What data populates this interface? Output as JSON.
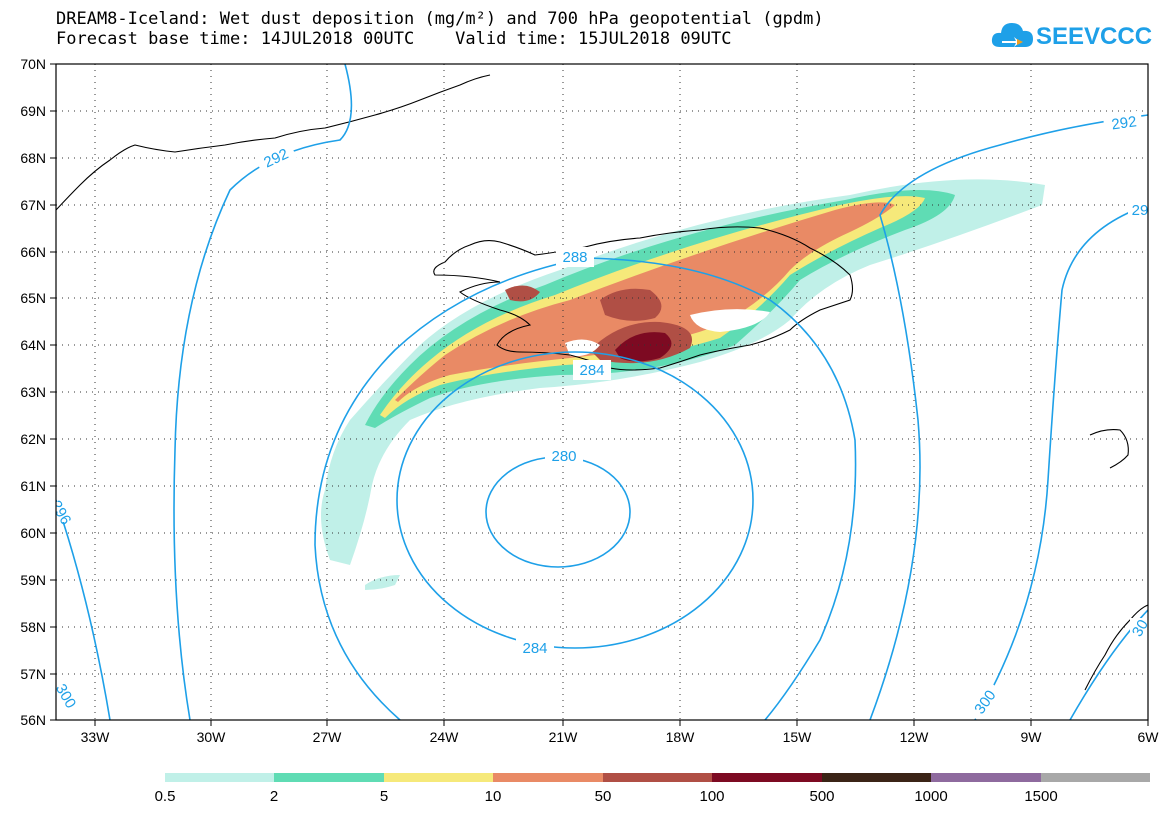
{
  "title": {
    "line1": "DREAM8-Iceland: Wet dust deposition (mg/m²) and 700 hPa geopotential (gpdm)",
    "line2": "Forecast base time: 14JUL2018 00UTC    Valid time: 15JUL2018 09UTC"
  },
  "logo": {
    "text": "SEEVCCC",
    "icon": "cloud-logo-icon",
    "color": "#1ea0e8"
  },
  "map": {
    "lat_labels": [
      "70N",
      "69N",
      "68N",
      "67N",
      "66N",
      "65N",
      "64N",
      "63N",
      "62N",
      "61N",
      "60N",
      "59N",
      "58N",
      "57N",
      "56N"
    ],
    "lon_labels": [
      "33W",
      "30W",
      "27W",
      "24W",
      "21W",
      "18W",
      "15W",
      "12W",
      "9W",
      "6W"
    ],
    "contour_color": "#1ea0e8",
    "contour_labels": [
      "292",
      "292",
      "29",
      "288",
      "284",
      "280",
      "284",
      "296",
      "300",
      "300",
      "30"
    ]
  },
  "colorbar": {
    "colors": [
      "#c0f0e8",
      "#5fdcb4",
      "#f6e97a",
      "#e98a65",
      "#b04f45",
      "#7d0a22",
      "#3b2416",
      "#8e6a9e",
      "#a8a8a8"
    ],
    "labels": [
      "0.5",
      "2",
      "5",
      "10",
      "50",
      "100",
      "500",
      "1000",
      "1500"
    ]
  }
}
